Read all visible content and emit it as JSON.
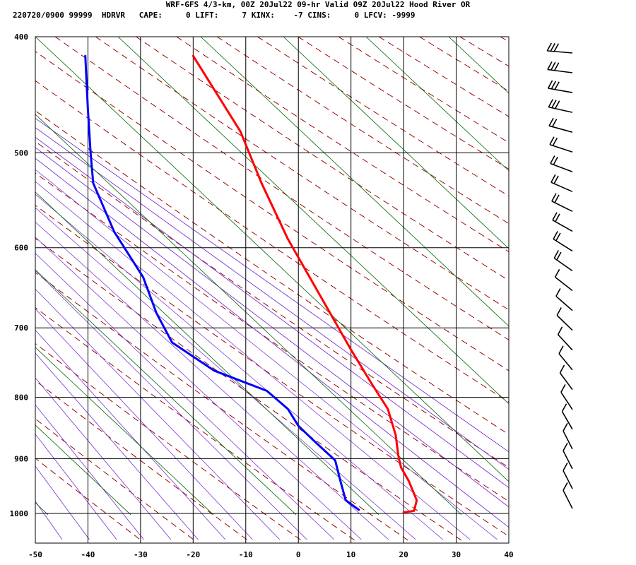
{
  "header": {
    "line1": "WRF-GFS 4/3-km, 00Z 20Jul22 09-hr Valid 09Z 20Jul22 Hood River OR",
    "line2": "220720/0900 99999  HDRVR   CAPE:     0 LIFT:     7 KINX:    -7 CINS:     0 LFCV: -9999"
  },
  "chart_data": {
    "type": "line",
    "title": "",
    "xlabel": "",
    "ylabel": "",
    "x_axis": {
      "ticks": [
        -50,
        -40,
        -30,
        -20,
        -10,
        0,
        10,
        20,
        30,
        40
      ],
      "range": [
        -50,
        40
      ],
      "skew": "temperature labels along bottom of skew-T"
    },
    "y_axis": {
      "ticks": [
        400,
        500,
        600,
        700,
        800,
        900,
        1000
      ],
      "range": [
        400,
        1040
      ],
      "scale": "log pressure (hPa)"
    },
    "grid": true,
    "series": [
      {
        "color": "#ff0000",
        "points": [
          [
            -20,
            415
          ],
          [
            -11,
            480
          ],
          [
            -7,
            530
          ],
          [
            -2,
            590
          ],
          [
            6,
            680
          ],
          [
            10,
            730
          ],
          [
            14,
            780
          ],
          [
            17,
            818
          ],
          [
            18.5,
            860
          ],
          [
            19,
            895
          ],
          [
            19.5,
            915
          ],
          [
            21,
            940
          ],
          [
            22.5,
            975
          ],
          [
            22,
            995
          ],
          [
            20,
            998
          ]
        ]
      },
      {
        "color": "#0000ff",
        "points": [
          [
            -40.5,
            415
          ],
          [
            -40,
            460
          ],
          [
            -39.5,
            500
          ],
          [
            -39,
            530
          ],
          [
            -35,
            582
          ],
          [
            -29.5,
            635
          ],
          [
            -27,
            680
          ],
          [
            -24,
            720
          ],
          [
            -16,
            760
          ],
          [
            -6,
            790
          ],
          [
            -2,
            818
          ],
          [
            0,
            845
          ],
          [
            3,
            870
          ],
          [
            7,
            903
          ],
          [
            8,
            940
          ],
          [
            9,
            975
          ],
          [
            11.5,
            993
          ]
        ]
      }
    ],
    "background_lines": {
      "isotherm_color": "#000000",
      "dry_adiabat_color": "#990000",
      "moist_adiabat_color": "#7a2fd0",
      "mixing_ratio_color": "#006600"
    },
    "wind_barbs": {
      "color": "#000000",
      "count": 24,
      "location": "right"
    }
  }
}
